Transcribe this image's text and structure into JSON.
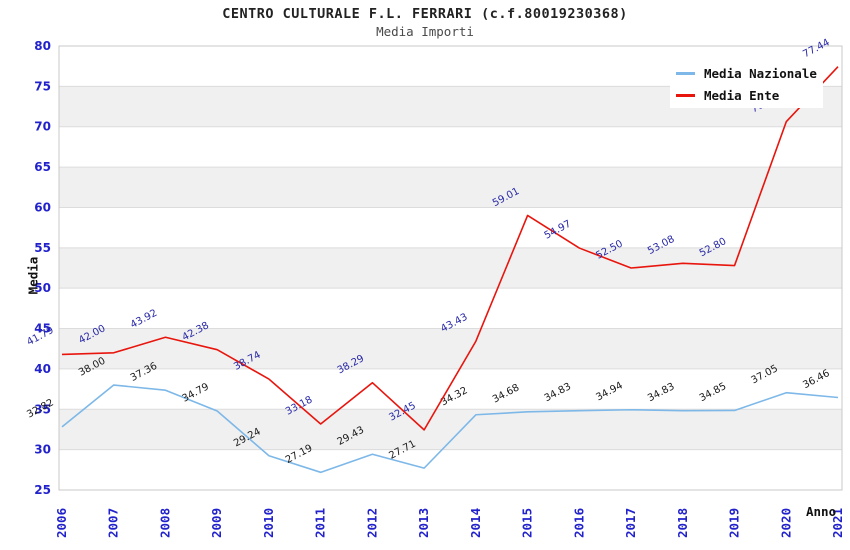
{
  "title": "CENTRO CULTURALE F.L. FERRARI (c.f.80019230368)",
  "subtitle": "Media Importi",
  "chart_data": {
    "type": "line",
    "x": [
      "2006",
      "2007",
      "2008",
      "2009",
      "2010",
      "2011",
      "2012",
      "2013",
      "2014",
      "2015",
      "2016",
      "2017",
      "2018",
      "2019",
      "2020",
      "2021"
    ],
    "series": [
      {
        "name": "Media Nazionale",
        "color": "#7db8e8",
        "label_color": "#1a1a1a",
        "values": [
          32.82,
          38.0,
          37.36,
          34.79,
          29.24,
          27.19,
          29.43,
          27.71,
          34.32,
          34.68,
          34.83,
          34.94,
          34.83,
          34.85,
          37.05,
          36.46
        ]
      },
      {
        "name": "Media Ente",
        "color": "#e8150d",
        "label_color": "#2828a8",
        "values": [
          41.79,
          42.0,
          43.92,
          42.38,
          38.74,
          33.18,
          38.29,
          32.45,
          43.43,
          59.01,
          54.97,
          52.5,
          53.08,
          52.8,
          70.62,
          77.44
        ]
      }
    ],
    "xlabel": "Anno",
    "ylabel": "Media",
    "ylim": [
      25,
      80
    ],
    "yticks": [
      25,
      30,
      35,
      40,
      45,
      50,
      55,
      60,
      65,
      70,
      75,
      80
    ],
    "legend_position": "top-right",
    "grid": "horizontal-bands",
    "band_color": "#f0f0f0",
    "gridline_color": "#dcdcdc",
    "frame_color": "#c8c8c8",
    "tick_label_color": "#2222cc"
  }
}
